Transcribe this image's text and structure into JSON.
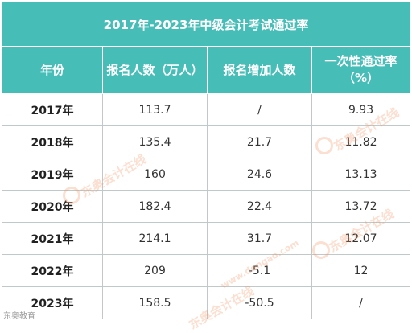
{
  "title": "2017年-2023年中级会计考试通过率",
  "headers": [
    "年份",
    "报名人数（万人）",
    "报名增加人数",
    "一次性通过率（%）"
  ],
  "rows": [
    {
      "year": "2017年",
      "applicants": "113.7",
      "increase": "/",
      "pass_rate": "9.93"
    },
    {
      "year": "2018年",
      "applicants": "135.4",
      "increase": "21.7",
      "pass_rate": "11.82"
    },
    {
      "year": "2019年",
      "applicants": "160",
      "increase": "24.6",
      "pass_rate": "13.13"
    },
    {
      "year": "2020年",
      "applicants": "182.4",
      "increase": "22.4",
      "pass_rate": "13.72"
    },
    {
      "year": "2021年",
      "applicants": "214.1",
      "increase": "31.7",
      "pass_rate": "12.07"
    },
    {
      "year": "2022年",
      "applicants": "209",
      "increase": "-5.1",
      "pass_rate": "12"
    },
    {
      "year": "2023年",
      "applicants": "158.5",
      "increase": "-50.5",
      "pass_rate": "/"
    }
  ],
  "watermark": {
    "text": "东奥会计在线",
    "url": "www.dongao.com",
    "corner": "东奥教育"
  },
  "colors": {
    "header_bg": "#47bdb8",
    "header_text": "#ffffff",
    "grid": "#bfc9c9",
    "watermark": "#f08c5a"
  }
}
